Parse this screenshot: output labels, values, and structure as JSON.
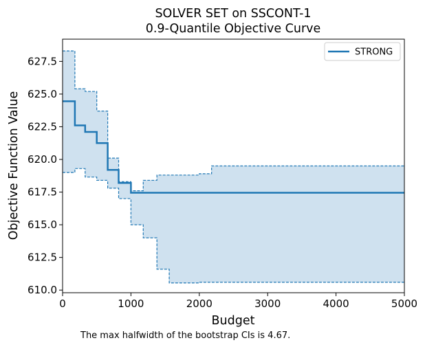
{
  "chart_data": {
    "type": "line",
    "title": "SOLVER SET on SSCONT-1",
    "subtitle": "0.9-Quantile Objective Curve",
    "xlabel": "Budget",
    "ylabel": "Objective Function Value",
    "xlim": [
      0,
      5000
    ],
    "ylim": [
      609.8,
      629.2
    ],
    "xticks": [
      0,
      1000,
      2000,
      3000,
      4000,
      5000
    ],
    "yticks": [
      610.0,
      612.5,
      615.0,
      617.5,
      620.0,
      622.5,
      625.0,
      627.5
    ],
    "xtick_labels": [
      "0",
      "1000",
      "2000",
      "3000",
      "4000",
      "5000"
    ],
    "ytick_labels": [
      "610.0",
      "612.5",
      "615.0",
      "617.5",
      "620.0",
      "622.5",
      "625.0",
      "627.5"
    ],
    "grid": false,
    "legend_position": "top-right",
    "series": [
      {
        "name": "STRONG",
        "color": "#1f77b4",
        "style": "step",
        "x": [
          0,
          180,
          330,
          500,
          660,
          820,
          1000,
          5000
        ],
        "y": [
          624.45,
          622.6,
          622.1,
          621.25,
          619.2,
          618.2,
          617.45,
          617.45
        ]
      }
    ],
    "confidence_band": {
      "series": "STRONG",
      "fill_color": "#cfe1ef",
      "edge_color": "#1f77b4",
      "style": "dashed-step",
      "upper": {
        "x": [
          0,
          180,
          330,
          500,
          660,
          820,
          1000,
          1180,
          1380,
          1560,
          2000,
          2180,
          5000
        ],
        "y": [
          628.3,
          625.4,
          625.2,
          623.7,
          620.1,
          618.3,
          617.6,
          618.4,
          618.8,
          618.8,
          618.9,
          619.5,
          619.5
        ]
      },
      "lower": {
        "x": [
          0,
          180,
          330,
          500,
          660,
          820,
          1000,
          1180,
          1380,
          1560,
          2000,
          2180,
          5000
        ],
        "y": [
          619.0,
          619.3,
          618.65,
          618.4,
          617.8,
          617.0,
          615.0,
          614.0,
          611.6,
          610.55,
          610.6,
          610.6,
          610.6
        ]
      }
    },
    "annotation": "The max halfwidth of the bootstrap CIs is 4.67."
  }
}
